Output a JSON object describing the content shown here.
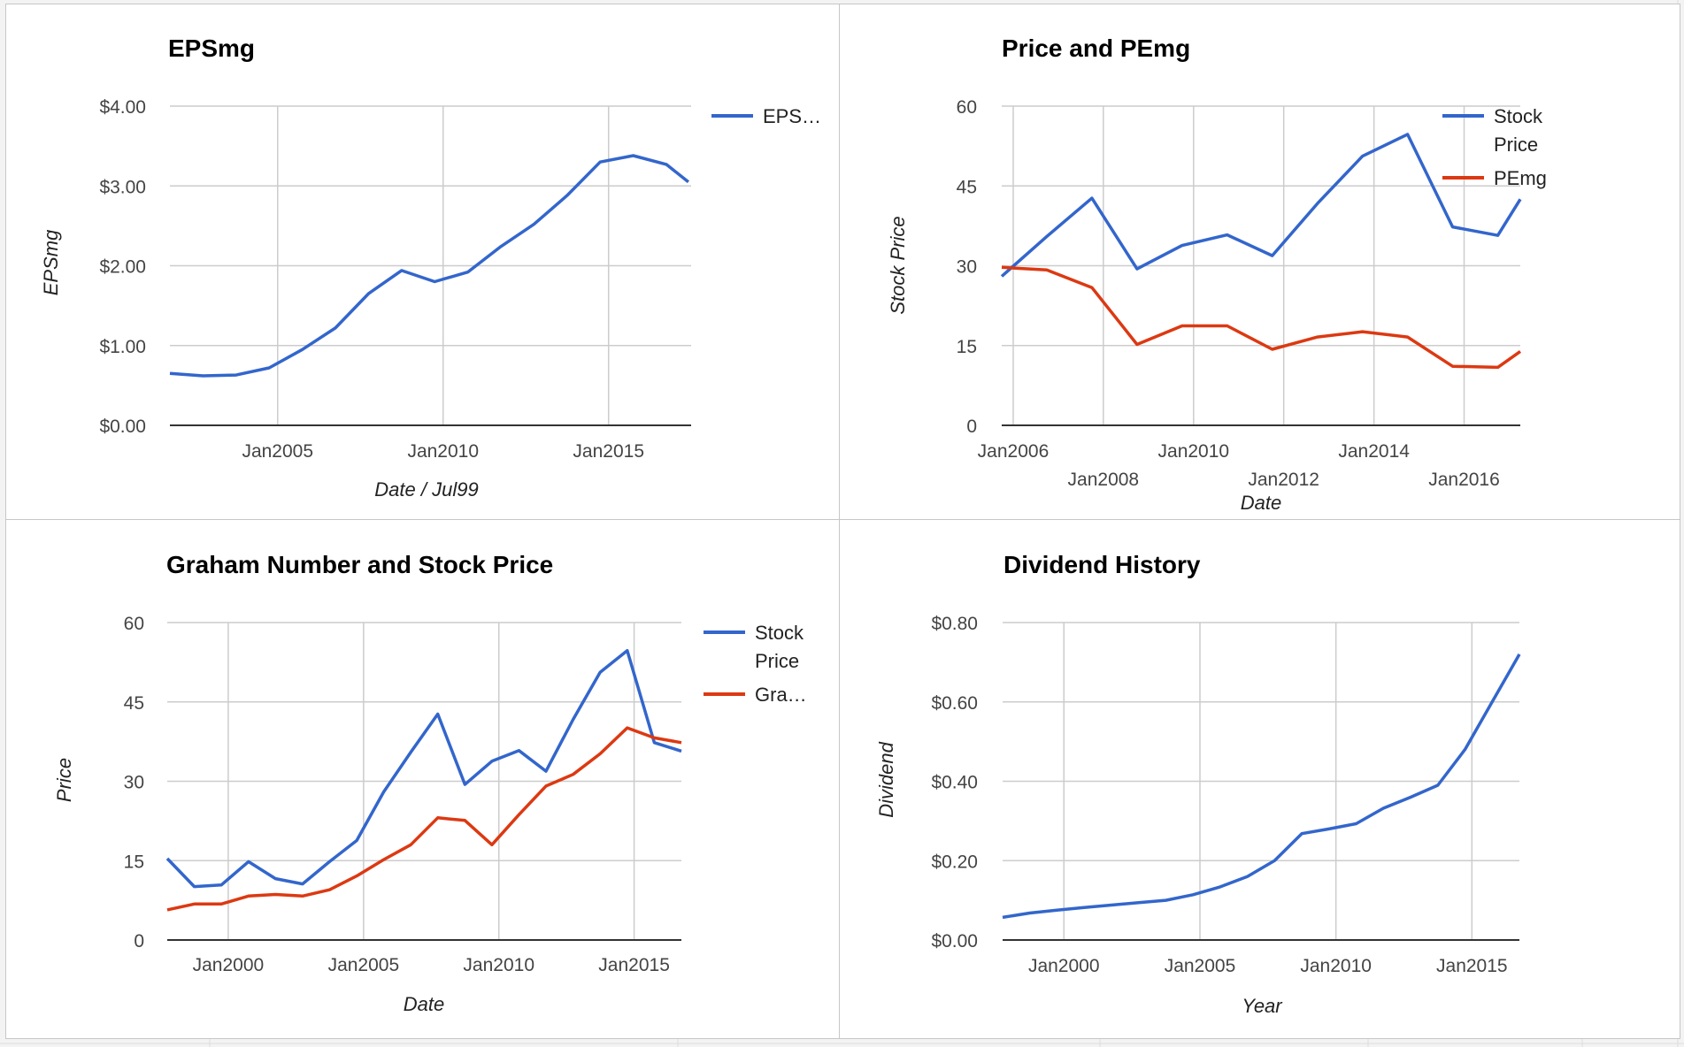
{
  "chart_data": [
    {
      "type": "line",
      "title": "EPSmg",
      "xlabel": "Date / Jul99",
      "ylabel": "EPSmg",
      "ylim": [
        0,
        4
      ],
      "xlim": [
        "2001-09-30",
        "2017-06-30"
      ],
      "x_ticks": [
        "2005-01-01",
        "2010-01-01",
        "2015-01-01"
      ],
      "x_tick_labels": [
        "Jan2005",
        "Jan2010",
        "Jan2015"
      ],
      "y_ticks": [
        0,
        1,
        2,
        3,
        4
      ],
      "y_tick_labels": [
        "$0.00",
        "$1.00",
        "$2.00",
        "$3.00",
        "$4.00"
      ],
      "grid": true,
      "legend_position": "right",
      "series": [
        {
          "name": "EPS…",
          "color": "#3366cc",
          "x": [
            "2001-09-30",
            "2002-09-30",
            "2003-09-30",
            "2004-09-30",
            "2005-09-30",
            "2006-09-30",
            "2007-09-30",
            "2008-09-30",
            "2009-09-30",
            "2010-09-30",
            "2011-09-30",
            "2012-09-30",
            "2013-09-30",
            "2014-09-30",
            "2015-09-30",
            "2016-09-30",
            "2017-05-31"
          ],
          "values": [
            0.65,
            0.62,
            0.63,
            0.72,
            0.95,
            1.22,
            1.65,
            1.94,
            1.8,
            1.92,
            2.24,
            2.52,
            2.88,
            3.3,
            3.38,
            3.27,
            3.05
          ]
        }
      ]
    },
    {
      "type": "line",
      "title": "Price and PEmg",
      "xlabel": "Date",
      "ylabel": "Stock Price",
      "ylim": [
        0,
        60
      ],
      "xlim": [
        "2005-09-30",
        "2017-03-31"
      ],
      "x_ticks": [
        "2006-01-01",
        "2008-01-01",
        "2010-01-01",
        "2012-01-01",
        "2014-01-01",
        "2016-01-01"
      ],
      "x_tick_labels": [
        "Jan2006",
        "Jan2008",
        "Jan2010",
        "Jan2012",
        "Jan2014",
        "Jan2016"
      ],
      "y_ticks": [
        0,
        15,
        30,
        45,
        60
      ],
      "y_tick_labels": [
        "0",
        "15",
        "30",
        "45",
        "60"
      ],
      "grid": true,
      "legend_position": "right",
      "series": [
        {
          "name": "Stock Price",
          "color": "#3366cc",
          "x": [
            "2005-09-30",
            "2006-09-30",
            "2007-09-30",
            "2008-09-30",
            "2009-09-30",
            "2010-09-30",
            "2011-09-30",
            "2012-09-30",
            "2013-09-30",
            "2014-09-30",
            "2015-09-30",
            "2016-09-30",
            "2017-03-31"
          ],
          "values": [
            28,
            35.5,
            42.7,
            29.4,
            33.8,
            35.8,
            31.9,
            41.7,
            50.6,
            54.7,
            37.3,
            35.7,
            42.5
          ]
        },
        {
          "name": "PEmg",
          "color": "#dc3912",
          "x": [
            "2005-09-30",
            "2006-09-30",
            "2007-09-30",
            "2008-09-30",
            "2009-09-30",
            "2010-09-30",
            "2011-09-30",
            "2012-09-30",
            "2013-09-30",
            "2014-09-30",
            "2015-09-30",
            "2016-09-30",
            "2017-03-31"
          ],
          "values": [
            29.7,
            29.2,
            25.9,
            15.2,
            18.7,
            18.7,
            14.3,
            16.6,
            17.6,
            16.6,
            11.1,
            10.9,
            13.9
          ]
        }
      ]
    },
    {
      "type": "line",
      "title": "Graham Number and Stock Price",
      "xlabel": "Date",
      "ylabel": "Price",
      "ylim": [
        0,
        60
      ],
      "xlim": [
        "1997-09-30",
        "2016-09-30"
      ],
      "x_ticks": [
        "2000-01-01",
        "2005-01-01",
        "2010-01-01",
        "2015-01-01"
      ],
      "x_tick_labels": [
        "Jan2000",
        "Jan2005",
        "Jan2010",
        "Jan2015"
      ],
      "y_ticks": [
        0,
        15,
        30,
        45,
        60
      ],
      "y_tick_labels": [
        "0",
        "15",
        "30",
        "45",
        "60"
      ],
      "grid": true,
      "legend_position": "right",
      "series": [
        {
          "name": "Stock Price",
          "color": "#3366cc",
          "x": [
            "1997-09-30",
            "1998-09-30",
            "1999-09-30",
            "2000-09-30",
            "2001-09-30",
            "2002-09-30",
            "2003-09-30",
            "2004-09-30",
            "2005-09-30",
            "2006-09-30",
            "2007-09-30",
            "2008-09-30",
            "2009-09-30",
            "2010-09-30",
            "2011-09-30",
            "2012-09-30",
            "2013-09-30",
            "2014-09-30",
            "2015-09-30",
            "2016-09-30"
          ],
          "values": [
            15.4,
            10.1,
            10.4,
            14.8,
            11.6,
            10.6,
            14.8,
            18.8,
            28,
            35.5,
            42.7,
            29.4,
            33.8,
            35.8,
            31.9,
            41.7,
            50.6,
            54.7,
            37.3,
            35.7
          ]
        },
        {
          "name": "Gra…",
          "color": "#dc3912",
          "x": [
            "1997-09-30",
            "1998-09-30",
            "1999-09-30",
            "2000-09-30",
            "2001-09-30",
            "2002-09-30",
            "2003-09-30",
            "2004-09-30",
            "2005-09-30",
            "2006-09-30",
            "2007-09-30",
            "2008-09-30",
            "2009-09-30",
            "2010-09-30",
            "2011-09-30",
            "2012-09-30",
            "2013-09-30",
            "2014-09-30",
            "2015-09-30",
            "2016-09-30"
          ],
          "values": [
            5.7,
            6.8,
            6.8,
            8.3,
            8.6,
            8.3,
            9.5,
            12.1,
            15.2,
            18,
            23.1,
            22.6,
            18,
            23.7,
            29.1,
            31.3,
            35.2,
            40.1,
            38.2,
            37.3
          ]
        }
      ]
    },
    {
      "type": "line",
      "title": "Dividend History",
      "xlabel": "Year",
      "ylabel": "Dividend",
      "ylim": [
        0,
        0.8
      ],
      "xlim": [
        "1997-09-30",
        "2016-09-30"
      ],
      "x_ticks": [
        "2000-01-01",
        "2005-01-01",
        "2010-01-01",
        "2015-01-01"
      ],
      "x_tick_labels": [
        "Jan2000",
        "Jan2005",
        "Jan2010",
        "Jan2015"
      ],
      "y_ticks": [
        0,
        0.2,
        0.4,
        0.6,
        0.8
      ],
      "y_tick_labels": [
        "$0.00",
        "$0.20",
        "$0.40",
        "$0.60",
        "$0.80"
      ],
      "grid": true,
      "legend_position": "none",
      "series": [
        {
          "name": "",
          "color": "#3366cc",
          "x": [
            "1997-09-30",
            "1998-09-30",
            "1999-09-30",
            "2000-09-30",
            "2001-09-30",
            "2002-09-30",
            "2003-09-30",
            "2004-09-30",
            "2005-09-30",
            "2006-09-30",
            "2007-09-30",
            "2008-09-30",
            "2009-09-30",
            "2010-09-30",
            "2011-09-30",
            "2012-09-30",
            "2013-09-30",
            "2014-09-30",
            "2015-09-30",
            "2016-09-30"
          ],
          "values": [
            0.057,
            0.068,
            0.075,
            0.082,
            0.088,
            0.094,
            0.1,
            0.114,
            0.134,
            0.16,
            0.2,
            0.268,
            0.28,
            0.293,
            0.332,
            0.36,
            0.39,
            0.48,
            0.6,
            0.72
          ]
        }
      ]
    }
  ]
}
